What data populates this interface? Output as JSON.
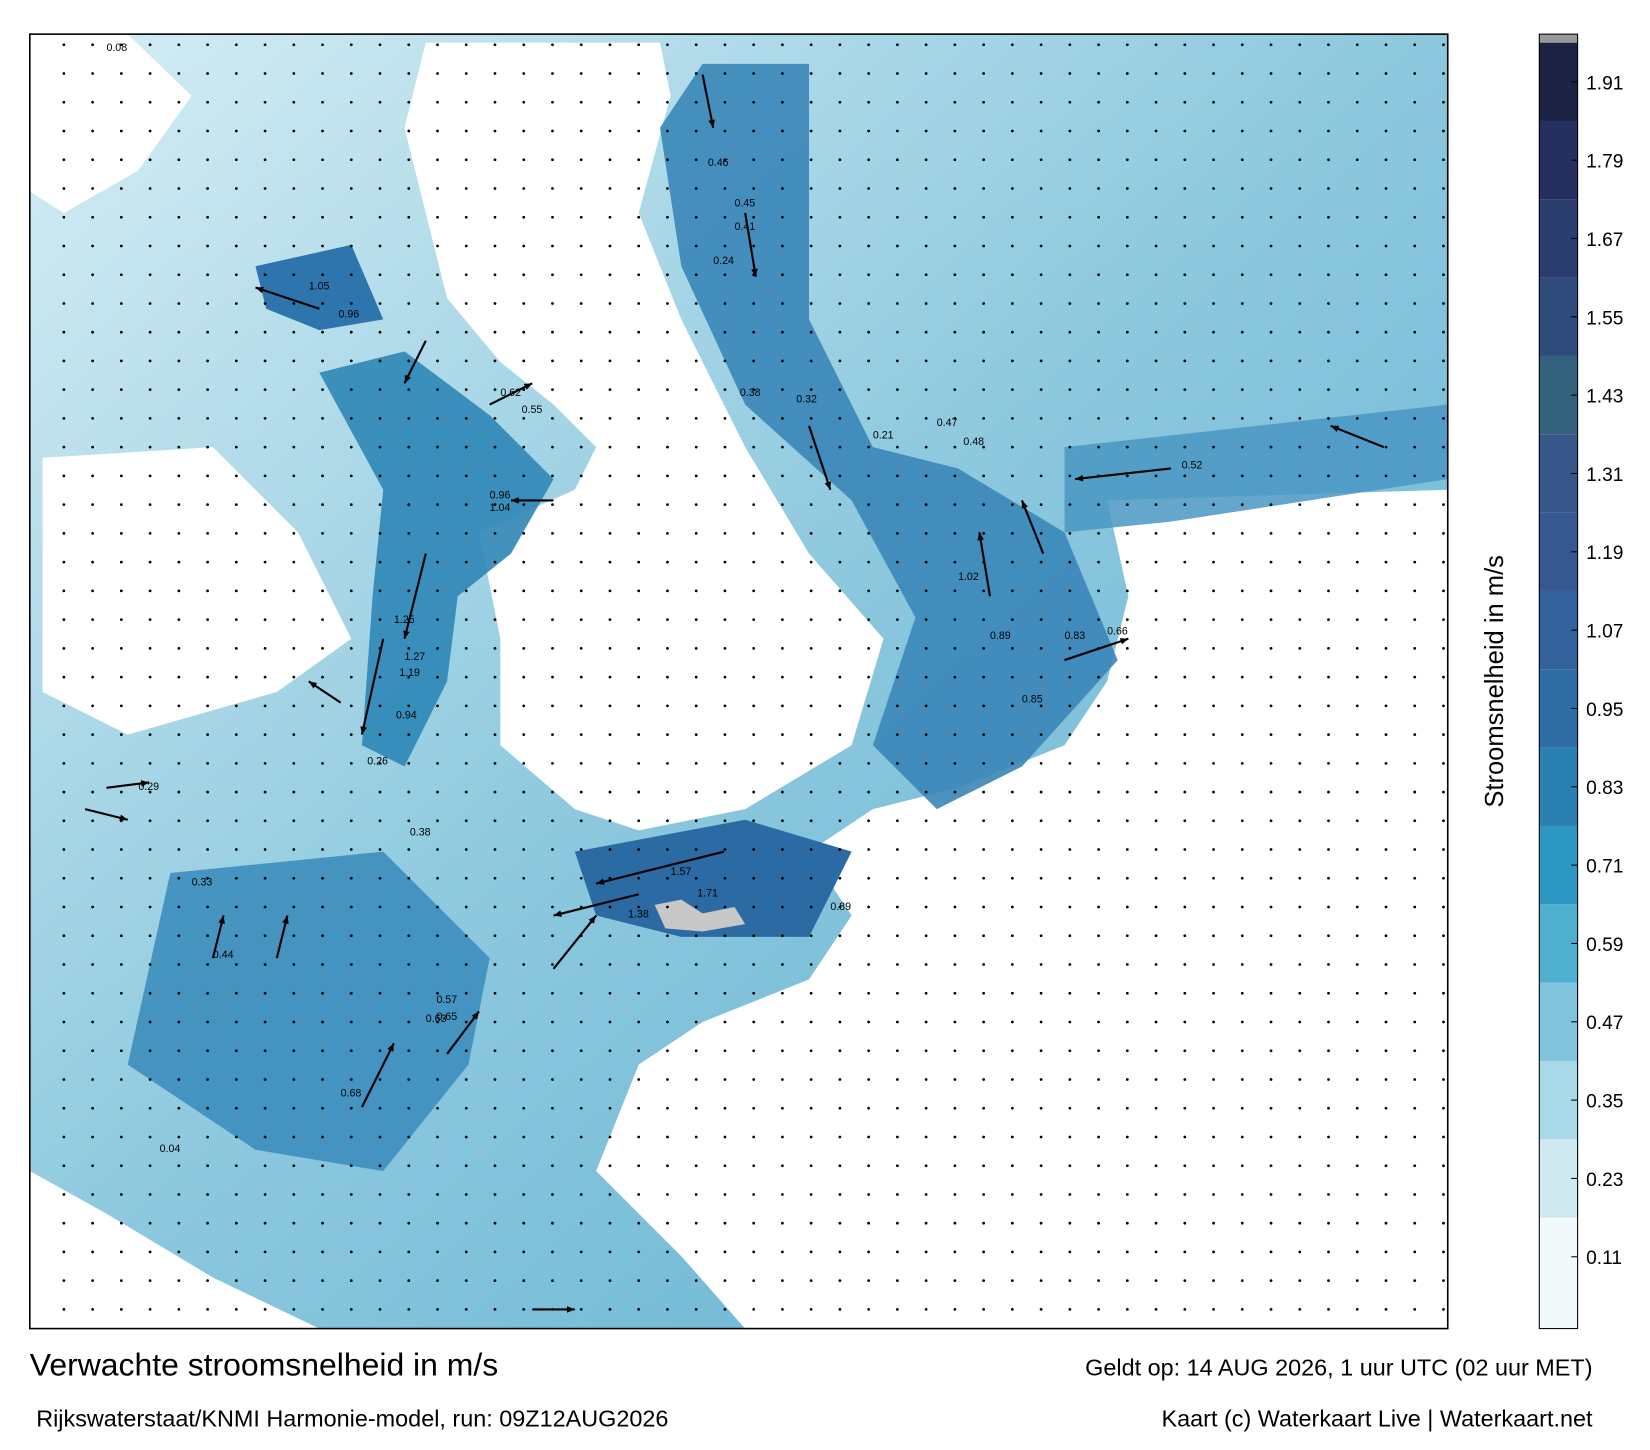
{
  "map": {
    "title": "Verwachte stroomsnelheid in m/s",
    "source": "Rijkswaterstaat/KNMI Harmonie-model, run: 09Z12AUG2026",
    "valid_time": "Geldt op: 14 AUG 2026, 1 uur UTC (02 uur MET)",
    "credit": "Kaart (c) Waterkaart Live | Waterkaart.net",
    "labels": [
      "1.05",
      "0.96",
      "0.55",
      "0.62",
      "1.04",
      "0.96",
      "1.25",
      "1.27",
      "1.19",
      "0.94",
      "0.26",
      "0.38",
      "0.46",
      "0.45",
      "0.41",
      "0.38",
      "0.32",
      "0.24",
      "0.21",
      "0.47",
      "0.48",
      "0.52",
      "1.02",
      "0.89",
      "0.85",
      "0.83",
      "0.66",
      "1.71",
      "1.57",
      "1.38",
      "0.89",
      "0.65",
      "0.63",
      "0.68",
      "0.57",
      "0.44",
      "0.33",
      "0.29",
      "0.08",
      "0.04"
    ]
  },
  "colorbar": {
    "label": "Stroomsnelheid in m/s",
    "lim": [
      0,
      1.97
    ],
    "ticks": [
      0.11,
      0.23,
      0.35,
      0.47,
      0.59,
      0.71,
      0.83,
      0.95,
      1.07,
      1.19,
      1.31,
      1.43,
      1.55,
      1.67,
      1.79,
      1.91
    ],
    "colors": [
      "#f2f9fb",
      "#cfe9f1",
      "#a9d8e8",
      "#7fc4dc",
      "#4fafce",
      "#2c97c0",
      "#2a80b0",
      "#2f6ea5",
      "#33619b",
      "#365891",
      "#37568a",
      "#34627e",
      "#2f4a7d",
      "#2b3c6f",
      "#263060",
      "#1c2345"
    ]
  }
}
